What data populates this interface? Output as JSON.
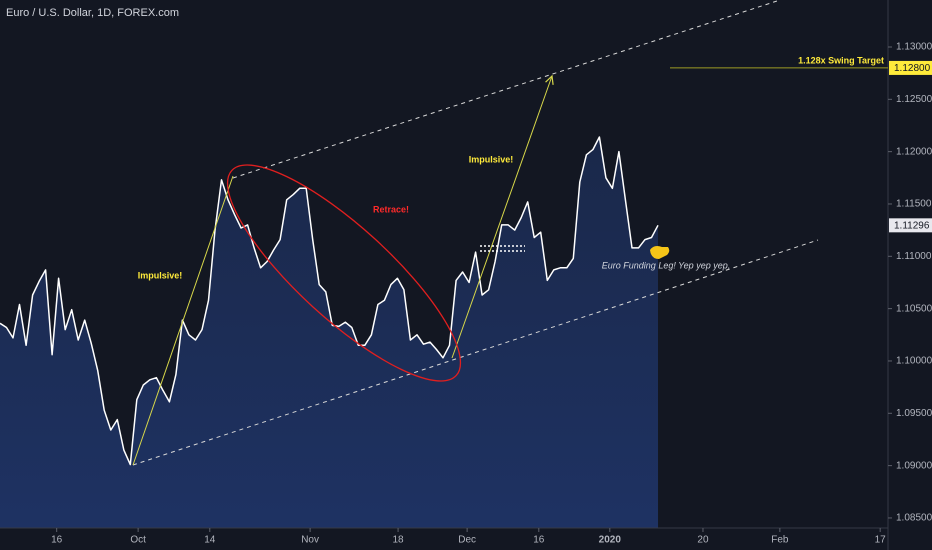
{
  "chart_data": {
    "type": "area",
    "title": "Euro / U.S. Dollar, 1D, FOREX.com",
    "values": [
      1.1036,
      1.1032,
      1.1022,
      1.1054,
      1.1015,
      1.1063,
      1.1076,
      1.1087,
      1.1006,
      1.1079,
      1.103,
      1.1049,
      1.102,
      1.1039,
      1.1017,
      1.0991,
      1.0953,
      1.0934,
      1.0944,
      1.0915,
      1.0901,
      1.0963,
      1.0977,
      1.0982,
      1.0984,
      1.0972,
      1.0961,
      1.0987,
      1.1039,
      1.1025,
      1.102,
      1.103,
      1.1058,
      1.1125,
      1.1173,
      1.1154,
      1.114,
      1.1127,
      1.113,
      1.1108,
      1.1089,
      1.1095,
      1.1106,
      1.1116,
      1.1154,
      1.1159,
      1.1165,
      1.1165,
      1.1116,
      1.1073,
      1.1066,
      1.1034,
      1.1033,
      1.1037,
      1.1032,
      1.1015,
      1.1015,
      1.1025,
      1.1054,
      1.1058,
      1.1073,
      1.1079,
      1.1068,
      1.102,
      1.1025,
      1.1016,
      1.1018,
      1.1011,
      1.1003,
      1.1015,
      1.1077,
      1.1085,
      1.1075,
      1.1104,
      1.1063,
      1.1068,
      1.1095,
      1.113,
      1.113,
      1.1125,
      1.1137,
      1.1152,
      1.1118,
      1.1123,
      1.1077,
      1.1087,
      1.1089,
      1.1089,
      1.1098,
      1.1171,
      1.1197,
      1.1202,
      1.1214,
      1.1175,
      1.1165,
      1.12,
      1.1154,
      1.1108,
      1.1108,
      1.1116,
      1.1118,
      1.11296
    ],
    "color": "#ffffff",
    "fill_color": "#1b2a4e",
    "xlim": [
      0,
      136.3
    ],
    "xticks": [
      {
        "value": 8.7,
        "label": "16"
      },
      {
        "value": 21.2,
        "label": "Oct"
      },
      {
        "value": 32.2,
        "label": "14"
      },
      {
        "value": 47.6,
        "label": "Nov"
      },
      {
        "value": 61.1,
        "label": "18"
      },
      {
        "value": 71.7,
        "label": "Dec"
      },
      {
        "value": 82.7,
        "label": "16"
      },
      {
        "value": 93.6,
        "label": "2020"
      },
      {
        "value": 107.9,
        "label": "20"
      },
      {
        "value": 119.7,
        "label": "Feb"
      },
      {
        "value": 135.1,
        "label": "17"
      }
    ],
    "ylim": [
      1.08404,
      1.13449
    ],
    "yticks": [
      {
        "value": 1.085,
        "label": "1.08500"
      },
      {
        "value": 1.09,
        "label": "1.09000"
      },
      {
        "value": 1.095,
        "label": "1.09500"
      },
      {
        "value": 1.1,
        "label": "1.10000"
      },
      {
        "value": 1.105,
        "label": "1.10500"
      },
      {
        "value": 1.11,
        "label": "1.11000"
      },
      {
        "value": 1.115,
        "label": "1.11500"
      },
      {
        "value": 1.12,
        "label": "1.12000"
      },
      {
        "value": 1.125,
        "label": "1.12500"
      },
      {
        "value": 1.13,
        "label": "1.13000"
      }
    ],
    "grid": false,
    "last_price_label": "1.11296",
    "target": {
      "value": 1.128,
      "label": "1.12800",
      "text": "1.128x Swing Target",
      "color": "#ffeb3b"
    },
    "annotations": [
      "Impulsive!",
      "Retrace!",
      "Impulsive!",
      "Euro Funding Leg! Yep yep yep."
    ]
  }
}
